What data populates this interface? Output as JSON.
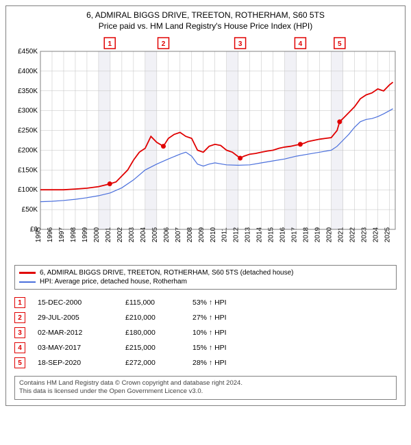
{
  "title_line1": "6, ADMIRAL BIGGS DRIVE, TREETON, ROTHERHAM, S60 5TS",
  "title_line2": "Price paid vs. HM Land Registry's House Price Index (HPI)",
  "chart": {
    "type": "line",
    "background_color": "#ffffff",
    "grid_color": "#c0c0c0",
    "shade_color": "#e8e8f0",
    "x_years": [
      1995,
      1996,
      1997,
      1998,
      1999,
      2000,
      2001,
      2002,
      2003,
      2004,
      2005,
      2006,
      2007,
      2008,
      2009,
      2010,
      2011,
      2012,
      2013,
      2014,
      2015,
      2016,
      2017,
      2018,
      2019,
      2020,
      2021,
      2022,
      2023,
      2024,
      2025
    ],
    "xlim": [
      1995,
      2025.5
    ],
    "ylim": [
      0,
      450000
    ],
    "ytick_step": 50000,
    "y_tick_labels": [
      "£0",
      "£50K",
      "£100K",
      "£150K",
      "£200K",
      "£250K",
      "£300K",
      "£350K",
      "£400K",
      "£450K"
    ],
    "series_property": {
      "color": "#e00000",
      "line_width": 1.8,
      "points": [
        [
          1995,
          100000
        ],
        [
          1996,
          100000
        ],
        [
          1997,
          100000
        ],
        [
          1998,
          102000
        ],
        [
          1999,
          104000
        ],
        [
          2000,
          108000
        ],
        [
          2000.96,
          115000
        ],
        [
          2001.5,
          120000
        ],
        [
          2002,
          135000
        ],
        [
          2002.5,
          150000
        ],
        [
          2003,
          175000
        ],
        [
          2003.5,
          195000
        ],
        [
          2004,
          205000
        ],
        [
          2004.5,
          235000
        ],
        [
          2005,
          220000
        ],
        [
          2005.57,
          210000
        ],
        [
          2006,
          230000
        ],
        [
          2006.5,
          240000
        ],
        [
          2007,
          245000
        ],
        [
          2007.5,
          235000
        ],
        [
          2008,
          230000
        ],
        [
          2008.5,
          200000
        ],
        [
          2009,
          195000
        ],
        [
          2009.5,
          210000
        ],
        [
          2010,
          215000
        ],
        [
          2010.5,
          212000
        ],
        [
          2011,
          200000
        ],
        [
          2011.5,
          195000
        ],
        [
          2012.17,
          180000
        ],
        [
          2012.5,
          185000
        ],
        [
          2013,
          190000
        ],
        [
          2013.5,
          192000
        ],
        [
          2014,
          195000
        ],
        [
          2014.5,
          198000
        ],
        [
          2015,
          200000
        ],
        [
          2015.5,
          205000
        ],
        [
          2016,
          208000
        ],
        [
          2016.5,
          210000
        ],
        [
          2017,
          213000
        ],
        [
          2017.34,
          215000
        ],
        [
          2017.7,
          218000
        ],
        [
          2018,
          222000
        ],
        [
          2018.5,
          225000
        ],
        [
          2019,
          228000
        ],
        [
          2019.5,
          230000
        ],
        [
          2020,
          232000
        ],
        [
          2020.5,
          250000
        ],
        [
          2020.72,
          272000
        ],
        [
          2021,
          280000
        ],
        [
          2021.5,
          295000
        ],
        [
          2022,
          310000
        ],
        [
          2022.5,
          330000
        ],
        [
          2023,
          340000
        ],
        [
          2023.5,
          345000
        ],
        [
          2024,
          355000
        ],
        [
          2024.5,
          350000
        ],
        [
          2025,
          365000
        ],
        [
          2025.3,
          372000
        ]
      ]
    },
    "series_hpi": {
      "color": "#4a6fdc",
      "line_width": 1.2,
      "points": [
        [
          1995,
          70000
        ],
        [
          1996,
          71000
        ],
        [
          1997,
          73000
        ],
        [
          1998,
          76000
        ],
        [
          1999,
          80000
        ],
        [
          2000,
          85000
        ],
        [
          2001,
          92000
        ],
        [
          2002,
          105000
        ],
        [
          2003,
          125000
        ],
        [
          2004,
          150000
        ],
        [
          2005,
          165000
        ],
        [
          2006,
          178000
        ],
        [
          2007,
          190000
        ],
        [
          2007.5,
          195000
        ],
        [
          2008,
          185000
        ],
        [
          2008.5,
          165000
        ],
        [
          2009,
          160000
        ],
        [
          2009.5,
          165000
        ],
        [
          2010,
          168000
        ],
        [
          2011,
          163000
        ],
        [
          2012,
          162000
        ],
        [
          2013,
          163000
        ],
        [
          2014,
          168000
        ],
        [
          2015,
          173000
        ],
        [
          2016,
          178000
        ],
        [
          2017,
          185000
        ],
        [
          2018,
          190000
        ],
        [
          2019,
          195000
        ],
        [
          2020,
          200000
        ],
        [
          2020.5,
          210000
        ],
        [
          2021,
          225000
        ],
        [
          2021.5,
          240000
        ],
        [
          2022,
          258000
        ],
        [
          2022.5,
          272000
        ],
        [
          2023,
          278000
        ],
        [
          2023.5,
          280000
        ],
        [
          2024,
          285000
        ],
        [
          2024.5,
          292000
        ],
        [
          2025,
          300000
        ],
        [
          2025.3,
          305000
        ]
      ]
    },
    "shaded_year_bands": [
      2000,
      2004,
      2011,
      2016,
      2020
    ],
    "sale_markers": [
      {
        "n": "1",
        "year": 2000.96,
        "price": 115000
      },
      {
        "n": "2",
        "year": 2005.57,
        "price": 210000
      },
      {
        "n": "3",
        "year": 2012.17,
        "price": 180000
      },
      {
        "n": "4",
        "year": 2017.34,
        "price": 215000
      },
      {
        "n": "5",
        "year": 2020.72,
        "price": 272000
      }
    ]
  },
  "legend": {
    "item1": {
      "color": "#e00000",
      "label": "6, ADMIRAL BIGGS DRIVE, TREETON, ROTHERHAM, S60 5TS (detached house)"
    },
    "item2": {
      "color": "#4a6fdc",
      "label": "HPI: Average price, detached house, Rotherham"
    }
  },
  "sales": [
    {
      "n": "1",
      "date": "15-DEC-2000",
      "price": "£115,000",
      "hpi": "53% ↑ HPI"
    },
    {
      "n": "2",
      "date": "29-JUL-2005",
      "price": "£210,000",
      "hpi": "27% ↑ HPI"
    },
    {
      "n": "3",
      "date": "02-MAR-2012",
      "price": "£180,000",
      "hpi": "10% ↑ HPI"
    },
    {
      "n": "4",
      "date": "03-MAY-2017",
      "price": "£215,000",
      "hpi": "15% ↑ HPI"
    },
    {
      "n": "5",
      "date": "18-SEP-2020",
      "price": "£272,000",
      "hpi": "28% ↑ HPI"
    }
  ],
  "footer_line1": "Contains HM Land Registry data © Crown copyright and database right 2024.",
  "footer_line2": "This data is licensed under the Open Government Licence v3.0."
}
